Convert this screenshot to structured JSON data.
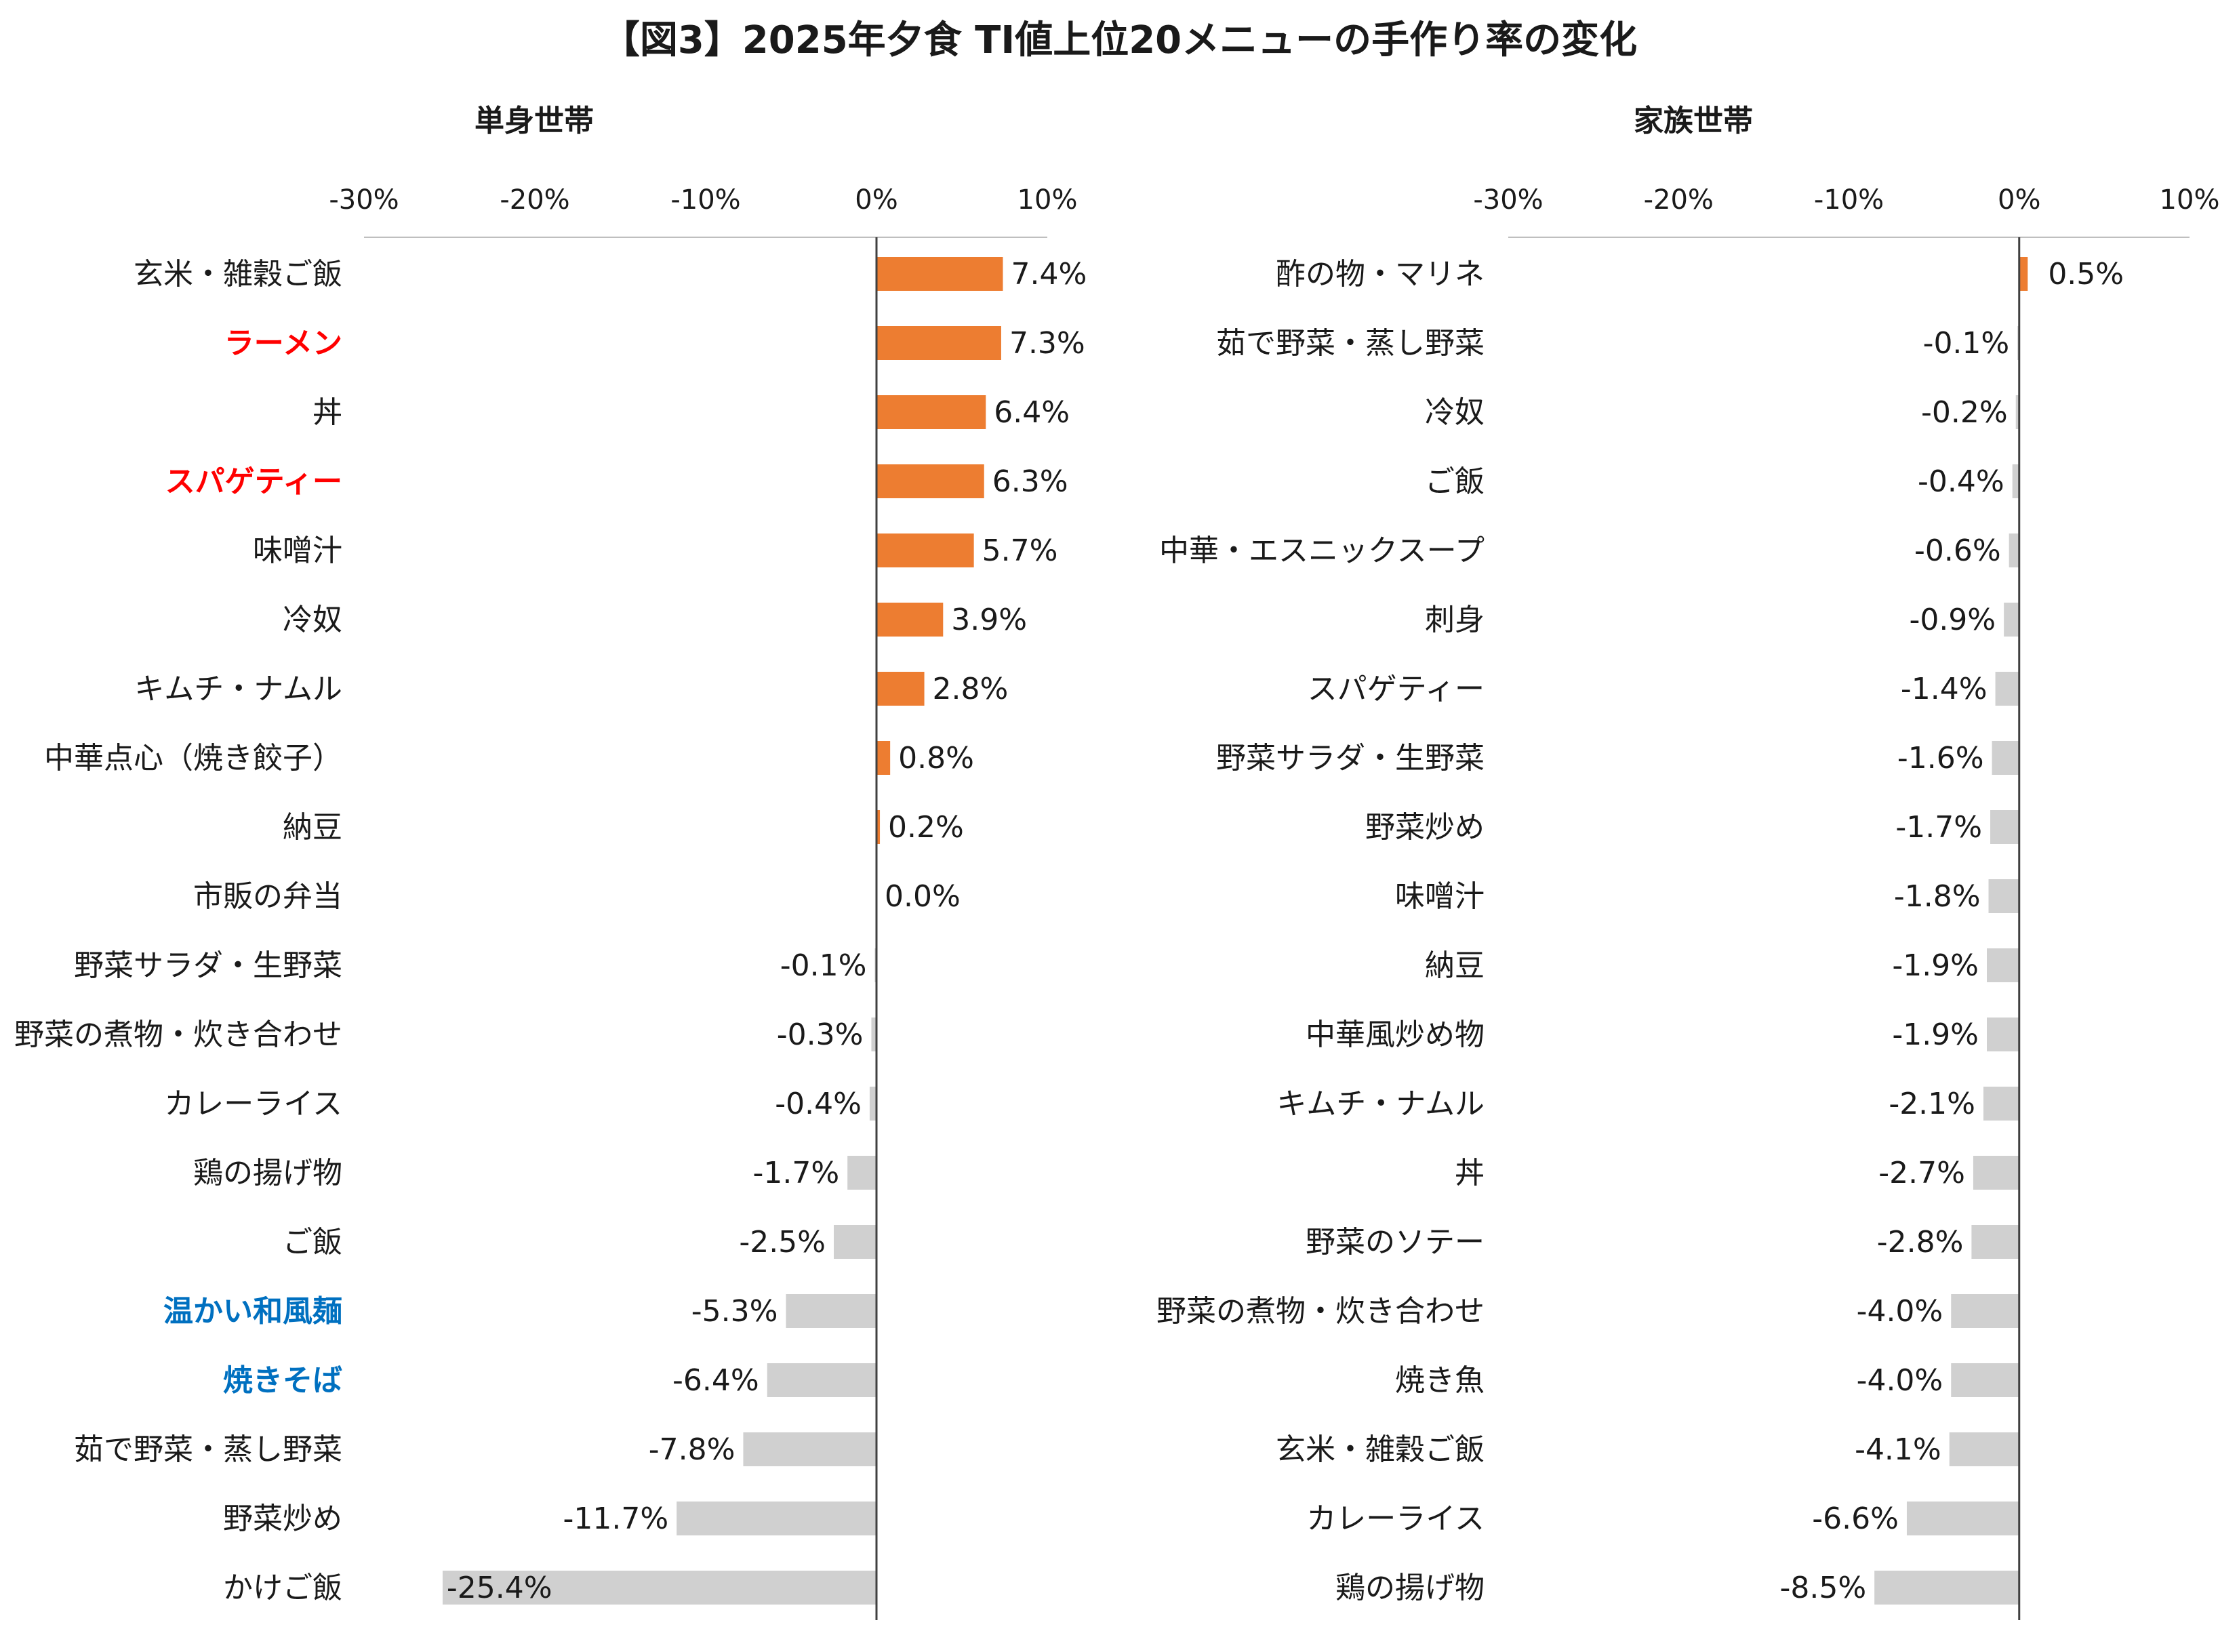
{
  "title": "【図3】2025年夕食 TI値上位20メニューの手作り率の変化",
  "colors": {
    "positive": "#ED7D31",
    "negative": "#D0D0D0",
    "axis": "#404040",
    "highlight_red": "#FF0000",
    "highlight_blue": "#0070C0",
    "text": "#1a1a1a"
  },
  "chart_data": [
    {
      "type": "bar",
      "orientation": "horizontal",
      "title": "単身世帯",
      "xlim": [
        -30,
        10
      ],
      "xticks": [
        -30,
        -20,
        -10,
        0,
        10
      ],
      "tick_labels": [
        "-30%",
        "-20%",
        "-10%",
        "0%",
        "10%"
      ],
      "categories": [
        "玄米・雑穀ご飯",
        "ラーメン",
        "丼",
        "スパゲティー",
        "味噌汁",
        "冷奴",
        "キムチ・ナムル",
        "中華点心（焼き餃子）",
        "納豆",
        "市販の弁当",
        "野菜サラダ・生野菜",
        "野菜の煮物・炊き合わせ",
        "カレーライス",
        "鶏の揚げ物",
        "ご飯",
        "温かい和風麺",
        "焼きそば",
        "茹で野菜・蒸し野菜",
        "野菜炒め",
        "かけご飯"
      ],
      "values": [
        7.4,
        7.3,
        6.4,
        6.3,
        5.7,
        3.9,
        2.8,
        0.8,
        0.2,
        0.0,
        -0.1,
        -0.3,
        -0.4,
        -1.7,
        -2.5,
        -5.3,
        -6.4,
        -7.8,
        -11.7,
        -25.4
      ],
      "value_labels": [
        "7.4%",
        "7.3%",
        "6.4%",
        "6.3%",
        "5.7%",
        "3.9%",
        "2.8%",
        "0.8%",
        "0.2%",
        "0.0%",
        "-0.1%",
        "-0.3%",
        "-0.4%",
        "-1.7%",
        "-2.5%",
        "-5.3%",
        "-6.4%",
        "-7.8%",
        "-11.7%",
        "-25.4%"
      ],
      "highlights": {
        "ラーメン": "red",
        "スパゲティー": "red",
        "温かい和風麺": "blue",
        "焼きそば": "blue"
      }
    },
    {
      "type": "bar",
      "orientation": "horizontal",
      "title": "家族世帯",
      "xlim": [
        -30,
        10
      ],
      "xticks": [
        -30,
        -20,
        -10,
        0,
        10
      ],
      "tick_labels": [
        "-30%",
        "-20%",
        "-10%",
        "0%",
        "10%"
      ],
      "categories": [
        "酢の物・マリネ",
        "茹で野菜・蒸し野菜",
        "冷奴",
        "ご飯",
        "中華・エスニックスープ",
        "刺身",
        "スパゲティー",
        "野菜サラダ・生野菜",
        "野菜炒め",
        "味噌汁",
        "納豆",
        "中華風炒め物",
        "キムチ・ナムル",
        "丼",
        "野菜のソテー",
        "野菜の煮物・炊き合わせ",
        "焼き魚",
        "玄米・雑穀ご飯",
        "カレーライス",
        "鶏の揚げ物"
      ],
      "values": [
        0.5,
        -0.1,
        -0.2,
        -0.4,
        -0.6,
        -0.9,
        -1.4,
        -1.6,
        -1.7,
        -1.8,
        -1.9,
        -1.9,
        -2.1,
        -2.7,
        -2.8,
        -4.0,
        -4.0,
        -4.1,
        -6.6,
        -8.5
      ],
      "value_labels": [
        "0.5%",
        "-0.1%",
        "-0.2%",
        "-0.4%",
        "-0.6%",
        "-0.9%",
        "-1.4%",
        "-1.6%",
        "-1.7%",
        "-1.8%",
        "-1.9%",
        "-1.9%",
        "-2.1%",
        "-2.7%",
        "-2.8%",
        "-4.0%",
        "-4.0%",
        "-4.1%",
        "-6.6%",
        "-8.5%"
      ],
      "highlights": {}
    }
  ]
}
